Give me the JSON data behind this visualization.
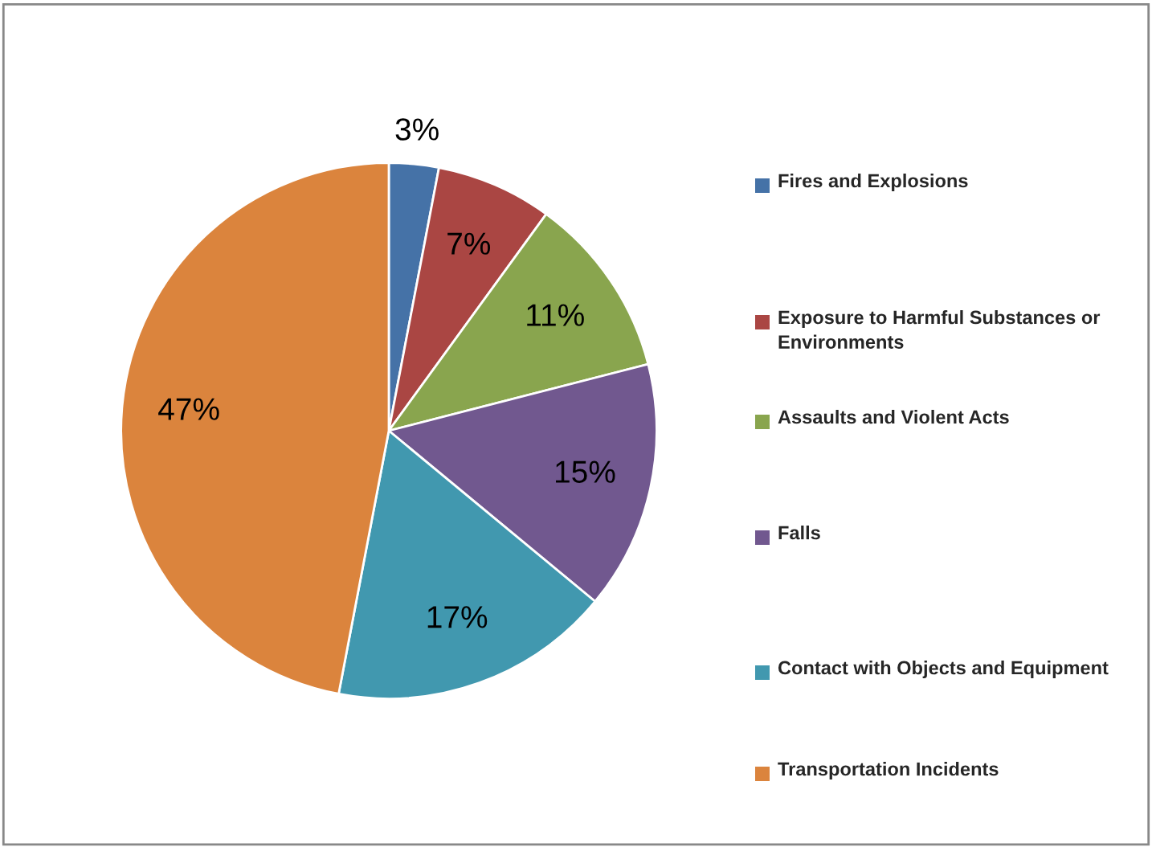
{
  "chart_data": {
    "type": "pie",
    "categories": [
      "Fires and Explosions",
      "Exposure to Harmful Substances or Environments",
      "Assaults and Violent Acts",
      "Falls",
      "Contact with Objects and Equipment",
      "Transportation Incidents"
    ],
    "values": [
      3,
      7,
      11,
      15,
      17,
      47
    ],
    "colors": [
      "#4572a7",
      "#aa4643",
      "#89a54e",
      "#71588f",
      "#4198af",
      "#db843d"
    ],
    "value_labels": [
      "3%",
      "7%",
      "11%",
      "15%",
      "17%",
      "47%"
    ],
    "legend": "right"
  }
}
